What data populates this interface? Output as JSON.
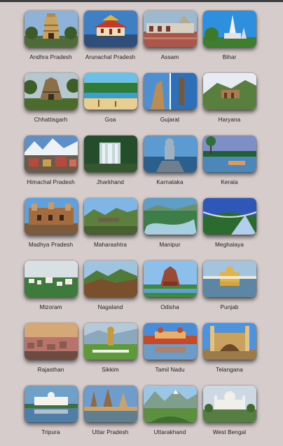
{
  "states": [
    {
      "name": "Andhra Pradesh",
      "image": "temple-gopuram",
      "colors": {
        "sky": "#8fb3d8",
        "ground": "#4f6b3a",
        "accent": "#caa15c"
      }
    },
    {
      "name": "Arunachal Pradesh",
      "image": "monastery",
      "colors": {
        "sky": "#3f7fc4",
        "ground": "#2f4e7a",
        "accent": "#e0b23e"
      }
    },
    {
      "name": "Assam",
      "image": "temple-street",
      "colors": {
        "sky": "#9db9cf",
        "ground": "#a9574b",
        "accent": "#d8d0c2"
      }
    },
    {
      "name": "Bihar",
      "image": "temple-tower",
      "colors": {
        "sky": "#2e8fdf",
        "ground": "#3f7d2f",
        "accent": "#f2f2f2"
      }
    },
    {
      "name": "Chhattisgarh",
      "image": "stone-temple",
      "colors": {
        "sky": "#b6c7cf",
        "ground": "#4b6b2c",
        "accent": "#8b6f49"
      }
    },
    {
      "name": "Goa",
      "image": "beach",
      "colors": {
        "sky": "#6cc0e5",
        "ground": "#e8cf91",
        "accent": "#2f7a36"
      }
    },
    {
      "name": "Gujarat",
      "image": "statue-collage",
      "colors": {
        "sky": "#3f8ed8",
        "ground": "#b98d55",
        "accent": "#6e5a43"
      }
    },
    {
      "name": "Haryana",
      "image": "hill-ruins",
      "colors": {
        "sky": "#e6ecf2",
        "ground": "#587f3d",
        "accent": "#a97c53"
      }
    },
    {
      "name": "Himachal Pradesh",
      "image": "snow-town",
      "colors": {
        "sky": "#5f8fc8",
        "ground": "#b64a3f",
        "accent": "#eef2f7"
      }
    },
    {
      "name": "Jharkhand",
      "image": "waterfall",
      "colors": {
        "sky": "#1e3b22",
        "ground": "#254d2b",
        "accent": "#e9f2f4"
      }
    },
    {
      "name": "Karnataka",
      "image": "shiva-statue",
      "colors": {
        "sky": "#5c9bd1",
        "ground": "#2b5f8e",
        "accent": "#9fb2c2"
      }
    },
    {
      "name": "Kerala",
      "image": "backwaters",
      "colors": {
        "sky": "#7e8fc8",
        "ground": "#1f5f3a",
        "accent": "#d99a63"
      }
    },
    {
      "name": "Madhya Pradesh",
      "image": "fort",
      "colors": {
        "sky": "#5fa0dd",
        "ground": "#a46b3f",
        "accent": "#c89b6c"
      }
    },
    {
      "name": "Maharashtra",
      "image": "hill-fort",
      "colors": {
        "sky": "#80b6e6",
        "ground": "#5c7f3e",
        "accent": "#6b6048"
      }
    },
    {
      "name": "Manipur",
      "image": "lake",
      "colors": {
        "sky": "#5e9ec7",
        "ground": "#3c7d4a",
        "accent": "#a7cfe0"
      }
    },
    {
      "name": "Meghalaya",
      "image": "bridge",
      "colors": {
        "sky": "#2f57b8",
        "ground": "#2d7a33",
        "accent": "#b2d0ee"
      }
    },
    {
      "name": "Mizoram",
      "image": "hill-city",
      "colors": {
        "sky": "#d8e0e4",
        "ground": "#3f7a3d",
        "accent": "#f0ede6"
      }
    },
    {
      "name": "Nagaland",
      "image": "hills",
      "colors": {
        "sky": "#9fc4df",
        "ground": "#7a4f2b",
        "accent": "#4f7a3a"
      }
    },
    {
      "name": "Odisha",
      "image": "sun-temple",
      "colors": {
        "sky": "#8cbfe9",
        "ground": "#3c8a44",
        "accent": "#9a4a33"
      }
    },
    {
      "name": "Punjab",
      "image": "golden-temple",
      "colors": {
        "sky": "#a4c3dc",
        "ground": "#5d86a4",
        "accent": "#e1b44b"
      }
    },
    {
      "name": "Rajasthan",
      "image": "city-sunset",
      "colors": {
        "sky": "#d5a878",
        "ground": "#b9736a",
        "accent": "#8a5c4e"
      }
    },
    {
      "name": "Sikkim",
      "image": "garden-statue",
      "colors": {
        "sky": "#b5c9d9",
        "ground": "#5e9a3a",
        "accent": "#c69a3e"
      }
    },
    {
      "name": "Tamil Nadu",
      "image": "palace-reflection",
      "colors": {
        "sky": "#4a8dd6",
        "ground": "#c44b2a",
        "accent": "#e8b06a"
      }
    },
    {
      "name": "Telangana",
      "image": "charminar",
      "colors": {
        "sky": "#4f93dd",
        "ground": "#c8a25e",
        "accent": "#e2c384"
      }
    },
    {
      "name": "Tripura",
      "image": "white-palace",
      "colors": {
        "sky": "#6fa1c8",
        "ground": "#3f6f3c",
        "accent": "#f4f2ec"
      }
    },
    {
      "name": "Uttar Pradesh",
      "image": "river-temples",
      "colors": {
        "sky": "#6f9ccb",
        "ground": "#c7a46f",
        "accent": "#8e6a45"
      }
    },
    {
      "name": "Uttarakhand",
      "image": "mountains",
      "colors": {
        "sky": "#9cc6e6",
        "ground": "#5c8f3e",
        "accent": "#eef2f5"
      }
    },
    {
      "name": "West Bengal",
      "image": "memorial",
      "colors": {
        "sky": "#cdd9e2",
        "ground": "#567d42",
        "accent": "#f1efe9"
      }
    }
  ]
}
